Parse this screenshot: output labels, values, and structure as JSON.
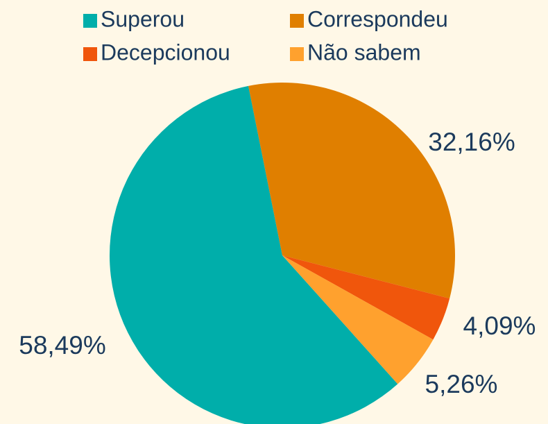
{
  "chart_data": {
    "type": "pie",
    "categories": [
      "Superou",
      "Correspondeu",
      "Decepcionou",
      "Não sabem"
    ],
    "values": [
      58.49,
      32.16,
      4.09,
      5.26
    ],
    "value_labels": [
      "58,49%",
      "32,16%",
      "4,09%",
      "5,26%"
    ],
    "colors": [
      "#00aeaa",
      "#e07f00",
      "#f0560c",
      "#ffa12e"
    ],
    "legend": "top"
  }
}
